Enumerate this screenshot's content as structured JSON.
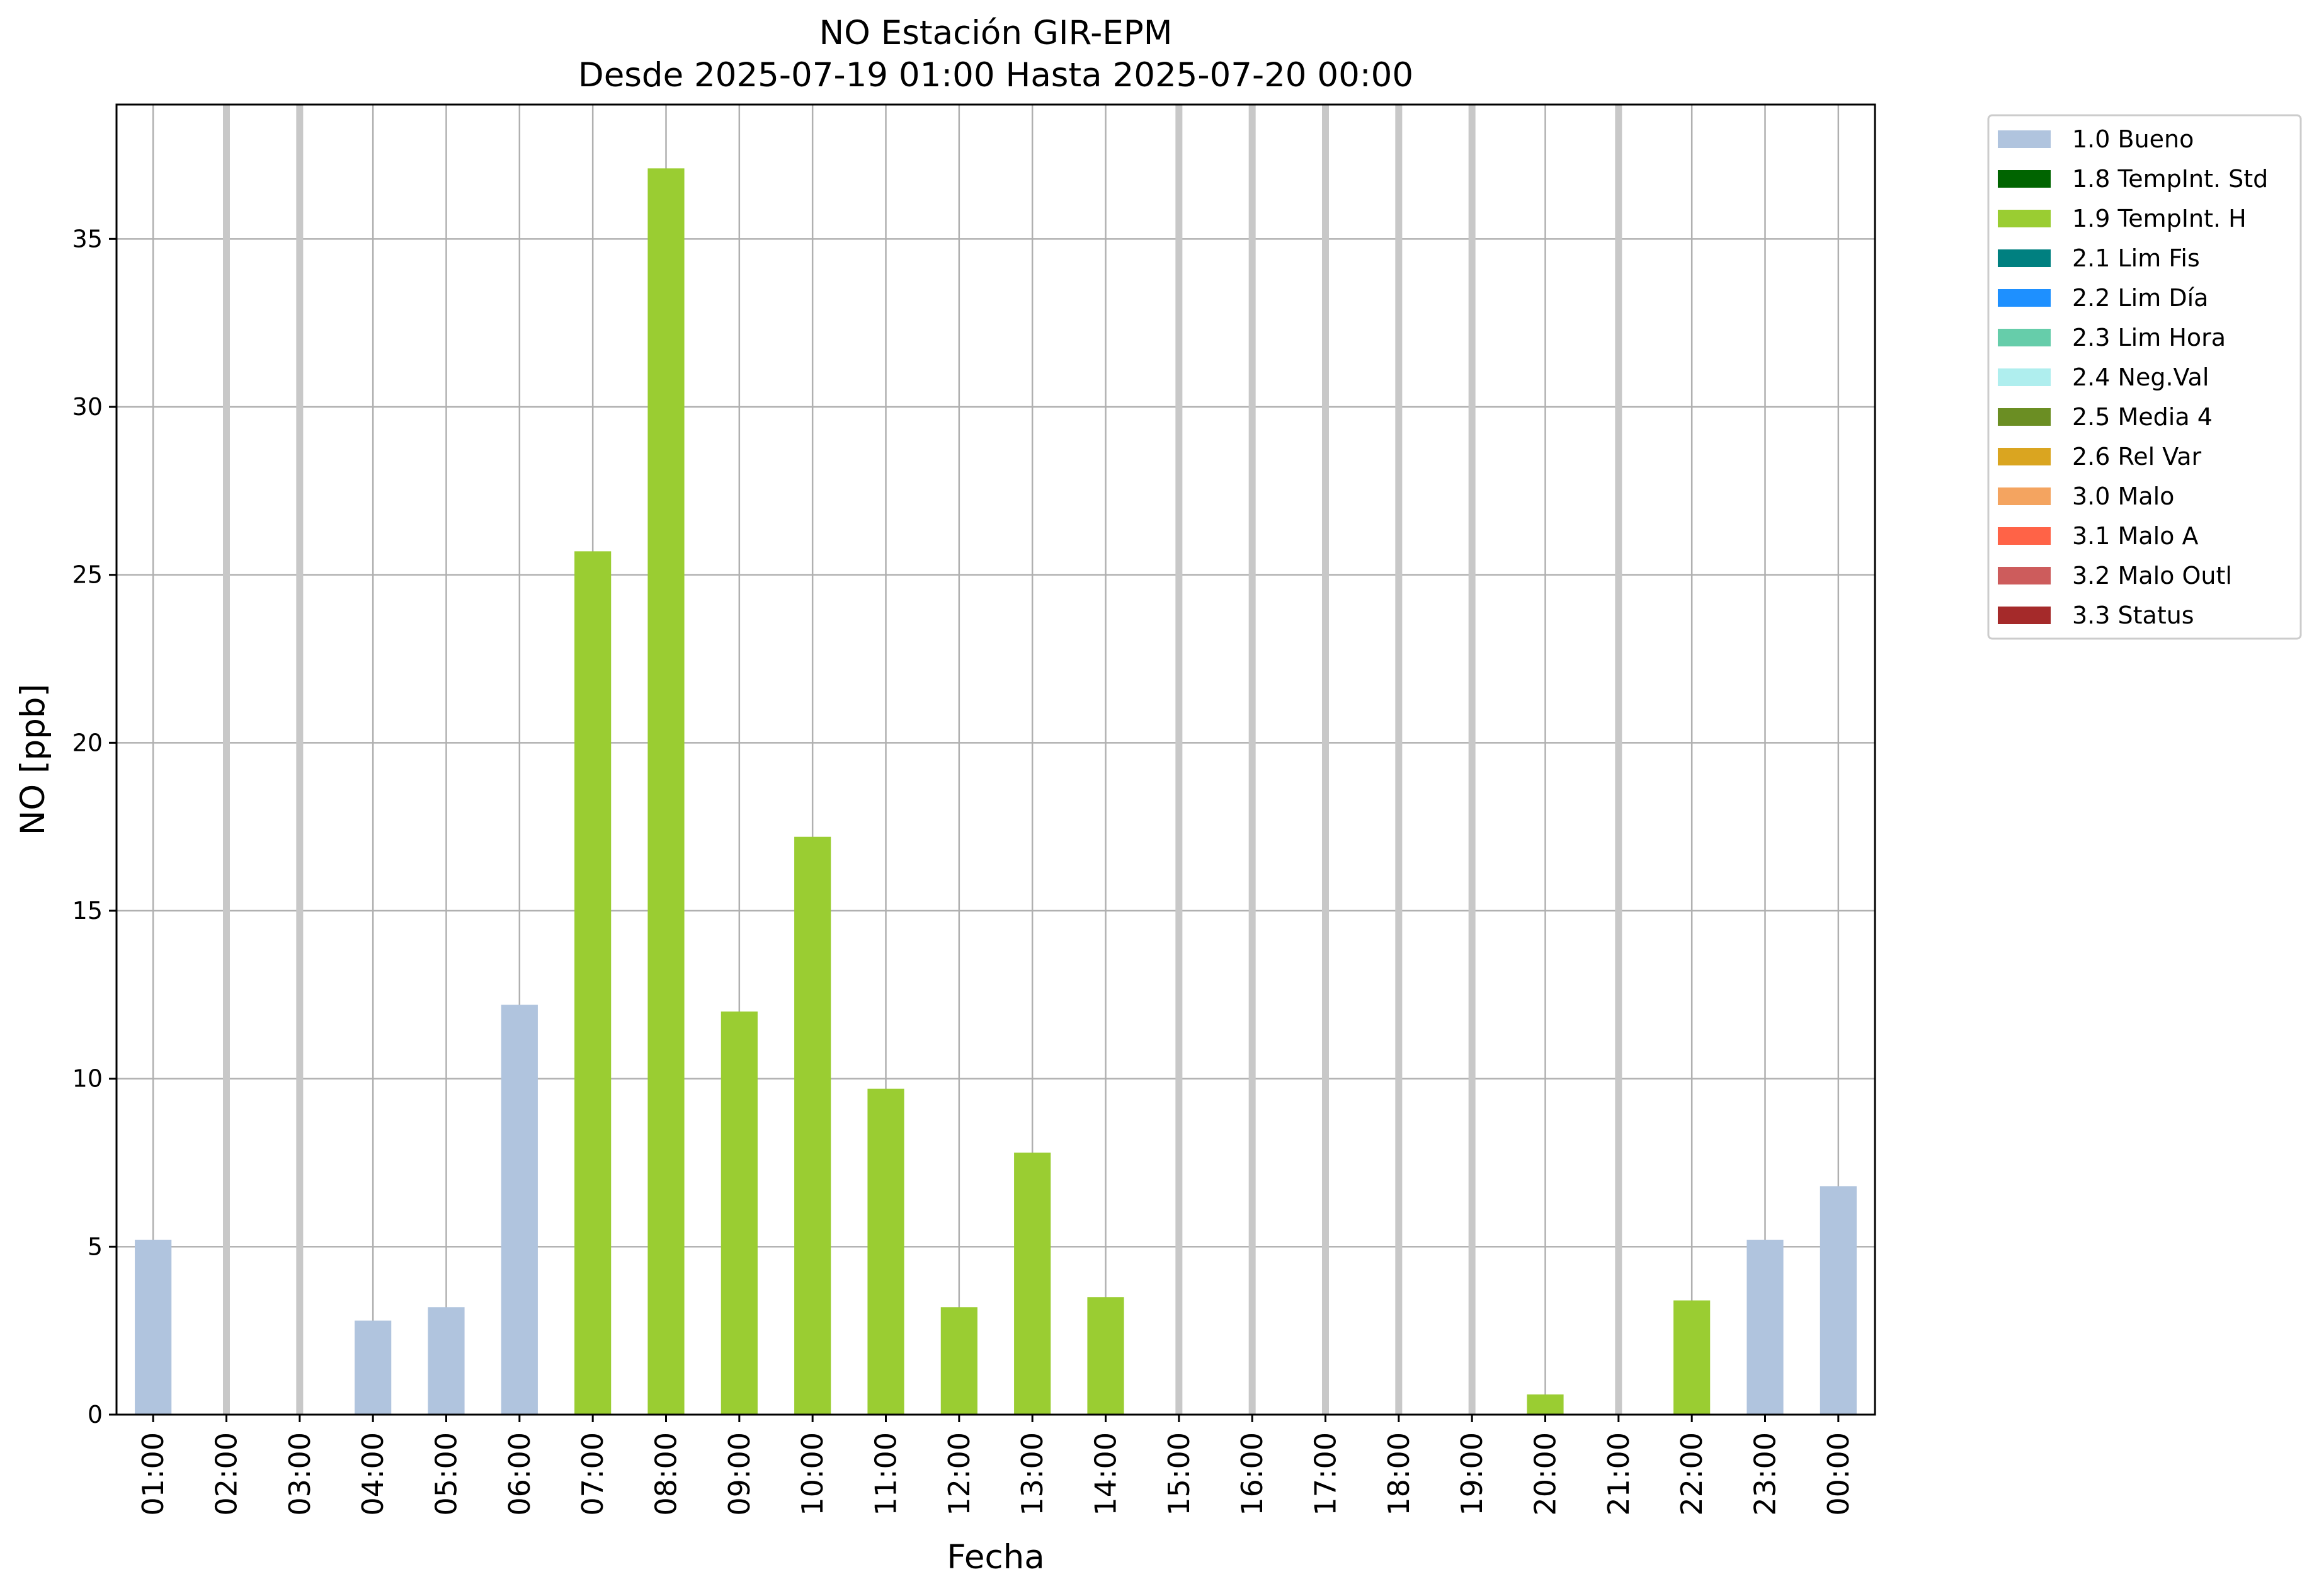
{
  "chart_data": {
    "type": "bar",
    "title": "NO Estación GIR-EPM",
    "subtitle": "Desde 2025-07-19 01:00 Hasta 2025-07-20 00:00",
    "xlabel": "Fecha",
    "ylabel": "NO [ppb]",
    "ylim": [
      0,
      39
    ],
    "yticks": [
      0,
      5,
      10,
      15,
      20,
      25,
      30,
      35
    ],
    "grid": true,
    "legend_position": "outside-top-right",
    "categories": [
      "01:00",
      "02:00",
      "03:00",
      "04:00",
      "05:00",
      "06:00",
      "07:00",
      "08:00",
      "09:00",
      "10:00",
      "11:00",
      "12:00",
      "13:00",
      "14:00",
      "15:00",
      "16:00",
      "17:00",
      "18:00",
      "19:00",
      "20:00",
      "21:00",
      "22:00",
      "23:00",
      "00:00"
    ],
    "missing_categories": [
      "02:00",
      "03:00",
      "15:00",
      "16:00",
      "17:00",
      "18:00",
      "19:00",
      "21:00"
    ],
    "bars": [
      {
        "x": "01:00",
        "value": 5.2,
        "flag": "1.0 Bueno"
      },
      {
        "x": "04:00",
        "value": 2.8,
        "flag": "1.0 Bueno"
      },
      {
        "x": "05:00",
        "value": 3.2,
        "flag": "1.0 Bueno"
      },
      {
        "x": "06:00",
        "value": 12.2,
        "flag": "1.0 Bueno"
      },
      {
        "x": "07:00",
        "value": 25.7,
        "flag": "1.9 TempInt. H"
      },
      {
        "x": "08:00",
        "value": 37.1,
        "flag": "1.9 TempInt. H"
      },
      {
        "x": "09:00",
        "value": 12.0,
        "flag": "1.9 TempInt. H"
      },
      {
        "x": "10:00",
        "value": 17.2,
        "flag": "1.9 TempInt. H"
      },
      {
        "x": "11:00",
        "value": 9.7,
        "flag": "1.9 TempInt. H"
      },
      {
        "x": "12:00",
        "value": 3.2,
        "flag": "1.9 TempInt. H"
      },
      {
        "x": "13:00",
        "value": 7.8,
        "flag": "1.9 TempInt. H"
      },
      {
        "x": "14:00",
        "value": 3.5,
        "flag": "1.9 TempInt. H"
      },
      {
        "x": "20:00",
        "value": 0.6,
        "flag": "1.9 TempInt. H"
      },
      {
        "x": "22:00",
        "value": 3.4,
        "flag": "1.9 TempInt. H"
      },
      {
        "x": "23:00",
        "value": 5.2,
        "flag": "1.0 Bueno"
      },
      {
        "x": "00:00",
        "value": 6.8,
        "flag": "1.0 Bueno"
      }
    ],
    "legend": [
      {
        "label": "1.0 Bueno",
        "color": "#b0c4de"
      },
      {
        "label": "1.8 TempInt. Std",
        "color": "#006400"
      },
      {
        "label": "1.9 TempInt. H",
        "color": "#9acd32"
      },
      {
        "label": "2.1 Lim Fis",
        "color": "#008080"
      },
      {
        "label": "2.2 Lim Día",
        "color": "#1e90ff"
      },
      {
        "label": "2.3 Lim Hora",
        "color": "#66cdaa"
      },
      {
        "label": "2.4 Neg.Val",
        "color": "#afeeee"
      },
      {
        "label": "2.5 Media 4",
        "color": "#6b8e23"
      },
      {
        "label": "2.6 Rel Var",
        "color": "#daa520"
      },
      {
        "label": "3.0 Malo",
        "color": "#f4a460"
      },
      {
        "label": "3.1 Malo A",
        "color": "#ff6347"
      },
      {
        "label": "3.2 Malo Outl",
        "color": "#cd5c5c"
      },
      {
        "label": "3.3 Status",
        "color": "#a52a2a"
      }
    ]
  }
}
